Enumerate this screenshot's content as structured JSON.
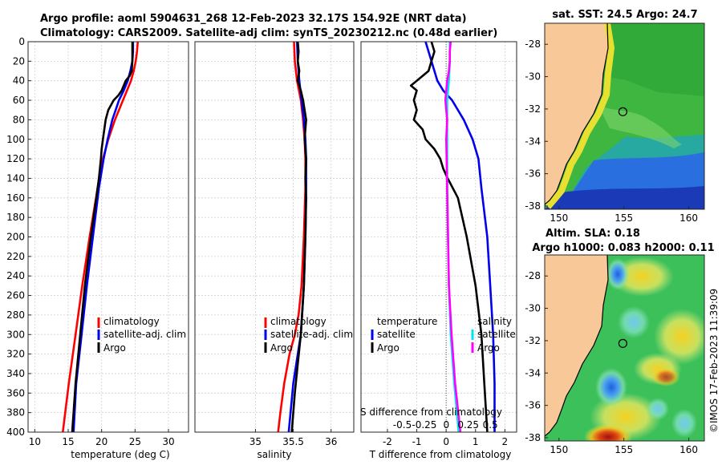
{
  "figure": {
    "title_line1": "Argo profile: aoml 5904631_268 12-Feb-2023 32.17S 154.92E (NRT data)",
    "title_line2": "Climatology: CARS2009. Satellite-adj clim: synTS_20230212.nc (0.48d earlier)",
    "credit": "©IMOS 17-Feb-2023 11:39:09"
  },
  "chart_data": [
    {
      "type": "line",
      "id": "temperature",
      "xlabel": "temperature (deg C)",
      "ylabel": "",
      "xlim": [
        9,
        33
      ],
      "ylim": [
        400,
        0
      ],
      "xticks": [
        "10",
        "15",
        "20",
        "25",
        "30"
      ],
      "xtick_values": [
        10,
        15,
        20,
        25,
        30
      ],
      "yticks": [
        "0",
        "20",
        "40",
        "60",
        "80",
        "100",
        "120",
        "140",
        "160",
        "180",
        "200",
        "220",
        "240",
        "260",
        "280",
        "300",
        "320",
        "340",
        "360",
        "380",
        "400"
      ],
      "ytick_values": [
        0,
        20,
        40,
        60,
        80,
        100,
        120,
        140,
        160,
        180,
        200,
        220,
        240,
        260,
        280,
        300,
        320,
        340,
        360,
        380,
        400
      ],
      "grid": true,
      "legend": [
        "climatology",
        "satellite-adj. clim",
        "Argo"
      ],
      "legend_position": "lower-right",
      "series": [
        {
          "name": "climatology",
          "color": "#ff0000",
          "depth": [
            0,
            10,
            20,
            30,
            40,
            50,
            60,
            70,
            80,
            100,
            120,
            150,
            200,
            250,
            300,
            350,
            400
          ],
          "values": [
            25.4,
            25.3,
            25.1,
            24.8,
            24.4,
            23.8,
            23.2,
            22.6,
            22.0,
            21.0,
            20.2,
            19.4,
            18.2,
            17.1,
            16.1,
            15.1,
            14.2
          ]
        },
        {
          "name": "satellite-adj. clim",
          "color": "#0000ee",
          "depth": [
            0,
            10,
            20,
            30,
            40,
            50,
            60,
            70,
            80,
            100,
            120,
            150,
            200,
            250,
            300,
            350,
            400
          ],
          "values": [
            24.7,
            24.7,
            24.6,
            24.3,
            23.9,
            23.3,
            22.6,
            22.1,
            21.6,
            20.9,
            20.3,
            19.6,
            18.7,
            17.8,
            17.0,
            16.2,
            15.8
          ]
        },
        {
          "name": "Argo",
          "color": "#000000",
          "depth": [
            0,
            10,
            20,
            30,
            35,
            40,
            45,
            50,
            55,
            60,
            70,
            80,
            90,
            100,
            110,
            120,
            140,
            160,
            200,
            250,
            300,
            350,
            380,
            400
          ],
          "values": [
            24.6,
            24.6,
            24.6,
            24.5,
            24.2,
            23.6,
            23.3,
            23.0,
            22.5,
            21.8,
            21.0,
            20.6,
            20.4,
            20.2,
            20.0,
            19.9,
            19.6,
            19.2,
            18.4,
            17.5,
            16.8,
            16.1,
            15.8,
            15.6
          ]
        }
      ]
    },
    {
      "type": "line",
      "id": "salinity",
      "xlabel": "salinity",
      "ylabel": "",
      "xlim": [
        34.2,
        36.3
      ],
      "ylim": [
        400,
        0
      ],
      "xticks": [
        "35",
        "35.5",
        "36"
      ],
      "xtick_values": [
        35,
        35.5,
        36
      ],
      "grid": true,
      "legend": [
        "climatology",
        "satellite-adj. clim",
        "Argo"
      ],
      "legend_position": "lower-right",
      "series": [
        {
          "name": "climatology",
          "color": "#ff0000",
          "depth": [
            0,
            20,
            40,
            60,
            80,
            100,
            120,
            150,
            200,
            250,
            280,
            300,
            320,
            350,
            380,
            400
          ],
          "values": [
            35.51,
            35.52,
            35.55,
            35.6,
            35.63,
            35.65,
            35.66,
            35.66,
            35.64,
            35.61,
            35.57,
            35.52,
            35.45,
            35.38,
            35.33,
            35.3
          ]
        },
        {
          "name": "satellite-adj. clim",
          "color": "#0000ee",
          "depth": [
            0,
            20,
            40,
            60,
            80,
            100,
            120,
            150,
            200,
            250,
            300,
            320,
            350,
            400
          ],
          "values": [
            35.55,
            35.56,
            35.58,
            35.61,
            35.64,
            35.66,
            35.67,
            35.67,
            35.66,
            35.64,
            35.6,
            35.56,
            35.5,
            35.44
          ]
        },
        {
          "name": "Argo",
          "color": "#000000",
          "depth": [
            0,
            10,
            20,
            30,
            40,
            50,
            60,
            70,
            80,
            100,
            120,
            140,
            160,
            200,
            250,
            300,
            330,
            360,
            400
          ],
          "values": [
            35.56,
            35.57,
            35.56,
            35.58,
            35.56,
            35.6,
            35.63,
            35.65,
            35.67,
            35.65,
            35.67,
            35.66,
            35.67,
            35.66,
            35.64,
            35.6,
            35.56,
            35.52,
            35.48
          ]
        }
      ]
    },
    {
      "type": "line",
      "id": "differences",
      "xlabel": "T difference from climatology",
      "xlim": [
        -2.9,
        2.4
      ],
      "ylim": [
        400,
        0
      ],
      "xticks": [
        "-2",
        "-1",
        "0",
        "1",
        "2"
      ],
      "xtick_values": [
        -2,
        -1,
        0,
        1,
        2
      ],
      "secondary_axis": {
        "label": "S difference from climatology",
        "ticks": [
          "-0.5",
          "-0.25",
          "0",
          "0.25",
          "0.5"
        ],
        "tick_values": [
          -0.5,
          -0.25,
          0,
          0.25,
          0.5
        ],
        "xlim": [
          -0.97,
          0.8
        ]
      },
      "grid": true,
      "legend_temperature": {
        "heading": "temperature",
        "entries": [
          "satellite",
          "Argo"
        ]
      },
      "legend_salinity": {
        "heading": "salinity",
        "entries": [
          "satellite",
          "Argo"
        ]
      },
      "series": [
        {
          "name": "temperature satellite",
          "color": "#0000ee",
          "axis": "T",
          "depth": [
            0,
            10,
            20,
            30,
            40,
            50,
            60,
            80,
            100,
            120,
            150,
            200,
            250,
            300,
            350,
            400
          ],
          "values": [
            -0.7,
            -0.6,
            -0.5,
            -0.4,
            -0.3,
            -0.1,
            0.2,
            0.6,
            0.9,
            1.1,
            1.2,
            1.4,
            1.5,
            1.6,
            1.65,
            1.65
          ]
        },
        {
          "name": "temperature Argo",
          "color": "#000000",
          "axis": "T",
          "depth": [
            0,
            10,
            20,
            30,
            40,
            45,
            50,
            60,
            70,
            80,
            90,
            100,
            110,
            120,
            130,
            140,
            160,
            200,
            250,
            300,
            350,
            400
          ],
          "values": [
            -0.5,
            -0.4,
            -0.5,
            -0.6,
            -1.0,
            -1.2,
            -1.0,
            -1.1,
            -1.0,
            -1.1,
            -0.8,
            -0.7,
            -0.4,
            -0.2,
            -0.1,
            0.05,
            0.4,
            0.7,
            1.0,
            1.2,
            1.3,
            1.4
          ]
        },
        {
          "name": "salinity satellite",
          "color": "#00e5ee",
          "axis": "S",
          "depth": [
            0,
            20,
            40,
            60,
            80,
            100,
            150,
            200,
            250,
            300,
            350,
            400
          ],
          "values": [
            0.04,
            0.04,
            0.03,
            0.01,
            0.01,
            0.01,
            0.01,
            0.02,
            0.03,
            0.05,
            0.09,
            0.14
          ]
        },
        {
          "name": "salinity Argo",
          "color": "#ff00ff",
          "axis": "S",
          "depth": [
            0,
            10,
            20,
            30,
            40,
            50,
            60,
            70,
            80,
            100,
            150,
            200,
            250,
            300,
            350,
            400
          ],
          "values": [
            0.05,
            0.04,
            0.04,
            0.03,
            0.01,
            0.0,
            -0.01,
            0.0,
            0.01,
            0.0,
            0.01,
            0.02,
            0.03,
            0.06,
            0.1,
            0.16
          ]
        }
      ]
    },
    {
      "type": "heatmap",
      "id": "sst_map",
      "title": "sat. SST: 24.5 Argo: 24.7",
      "xticks": [
        "150",
        "155",
        "160"
      ],
      "xtick_values": [
        150,
        155,
        160
      ],
      "yticks": [
        "-28",
        "-30",
        "-32",
        "-34",
        "-36",
        "-38"
      ],
      "ytick_values": [
        -28,
        -30,
        -32,
        -34,
        -36,
        -38
      ],
      "xlim": [
        148.9,
        161.2
      ],
      "ylim": [
        -38.2,
        -26.7
      ],
      "marker": {
        "lon": 154.92,
        "lat": -32.17
      }
    },
    {
      "type": "heatmap",
      "id": "sla_map",
      "title_line1": "Altim. SLA: 0.18",
      "title_line2": "Argo h1000: 0.083 h2000: 0.11",
      "xticks": [
        "150",
        "155",
        "160"
      ],
      "xtick_values": [
        150,
        155,
        160
      ],
      "yticks": [
        "-28",
        "-30",
        "-32",
        "-34",
        "-36",
        "-38"
      ],
      "ytick_values": [
        -28,
        -30,
        -32,
        -34,
        -36,
        -38
      ],
      "xlim": [
        148.9,
        161.2
      ],
      "ylim": [
        -38.2,
        -26.7
      ],
      "marker": {
        "lon": 154.92,
        "lat": -32.17
      }
    }
  ]
}
